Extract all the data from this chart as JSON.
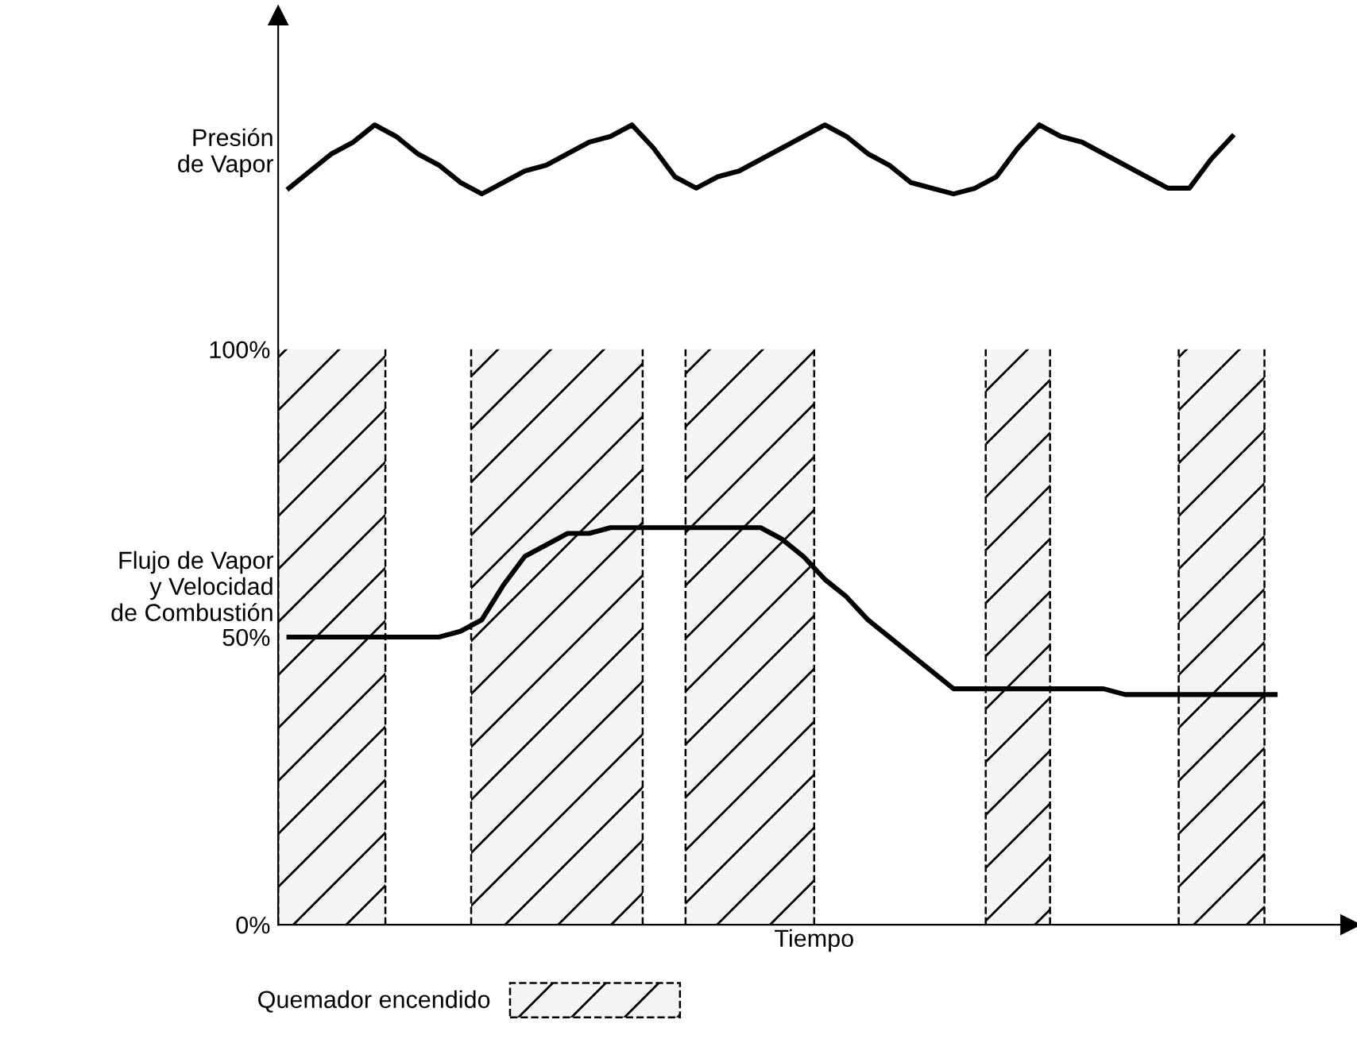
{
  "chart_data": {
    "type": "line",
    "xlabel": "Tiempo",
    "categories": [
      null,
      null,
      null,
      null,
      null,
      null,
      null,
      null,
      null,
      null,
      null,
      null,
      null,
      null,
      null,
      null,
      null,
      null,
      null,
      null,
      null,
      null,
      null,
      null,
      null,
      null,
      null,
      null,
      null,
      null,
      null,
      null,
      null,
      null,
      null,
      null,
      null,
      null,
      null,
      null,
      null,
      null,
      null,
      null,
      null,
      null,
      null,
      null,
      null,
      null
    ],
    "ylim": [
      0,
      158
    ],
    "yticks": [
      {
        "value": 0,
        "label": "0%"
      },
      {
        "value": 50,
        "label": "50%"
      },
      {
        "value": 100,
        "label": "100%"
      }
    ],
    "tick_labels": "y",
    "legend": "bottom left",
    "series": [
      {
        "name": "Quemador encendido",
        "type": "bar",
        "color": "#000000",
        "values": [
          100,
          100,
          100,
          100,
          100,
          null,
          null,
          null,
          null,
          100,
          100,
          100,
          100,
          100,
          100,
          100,
          100,
          null,
          null,
          100,
          100,
          100,
          100,
          100,
          100,
          null,
          null,
          null,
          null,
          null,
          null,
          null,
          null,
          100,
          100,
          100,
          null,
          null,
          null,
          null,
          null,
          null,
          100,
          100,
          100,
          100,
          null,
          null,
          null,
          null
        ]
      },
      {
        "name": "Presión\nde Vapor",
        "color": "#000000",
        "values": [
          128,
          131,
          134,
          136,
          139,
          137,
          134,
          132,
          129,
          127,
          129,
          131,
          132,
          134,
          136,
          137,
          139,
          135,
          130,
          128,
          130,
          131,
          133,
          135,
          137,
          139,
          137,
          134,
          132,
          129,
          128,
          127,
          128,
          130,
          135,
          139,
          137,
          136,
          134,
          132,
          130,
          128,
          128,
          133,
          137,
          null,
          null,
          null,
          null,
          null
        ]
      },
      {
        "name": "Flujo de Vapor\ny Velocidad\nde Combustión",
        "color": "#000000",
        "values": [
          50,
          50,
          50,
          50,
          50,
          50,
          50,
          50,
          51,
          53,
          59,
          64,
          66,
          68,
          68,
          69,
          69,
          69,
          69,
          69,
          69,
          69,
          69,
          67,
          64,
          60,
          57,
          53,
          50,
          47,
          44,
          41,
          41,
          41,
          41,
          41,
          41,
          41,
          41,
          40,
          40,
          40,
          40,
          40,
          40,
          40,
          40,
          null,
          null,
          null
        ]
      }
    ]
  }
}
